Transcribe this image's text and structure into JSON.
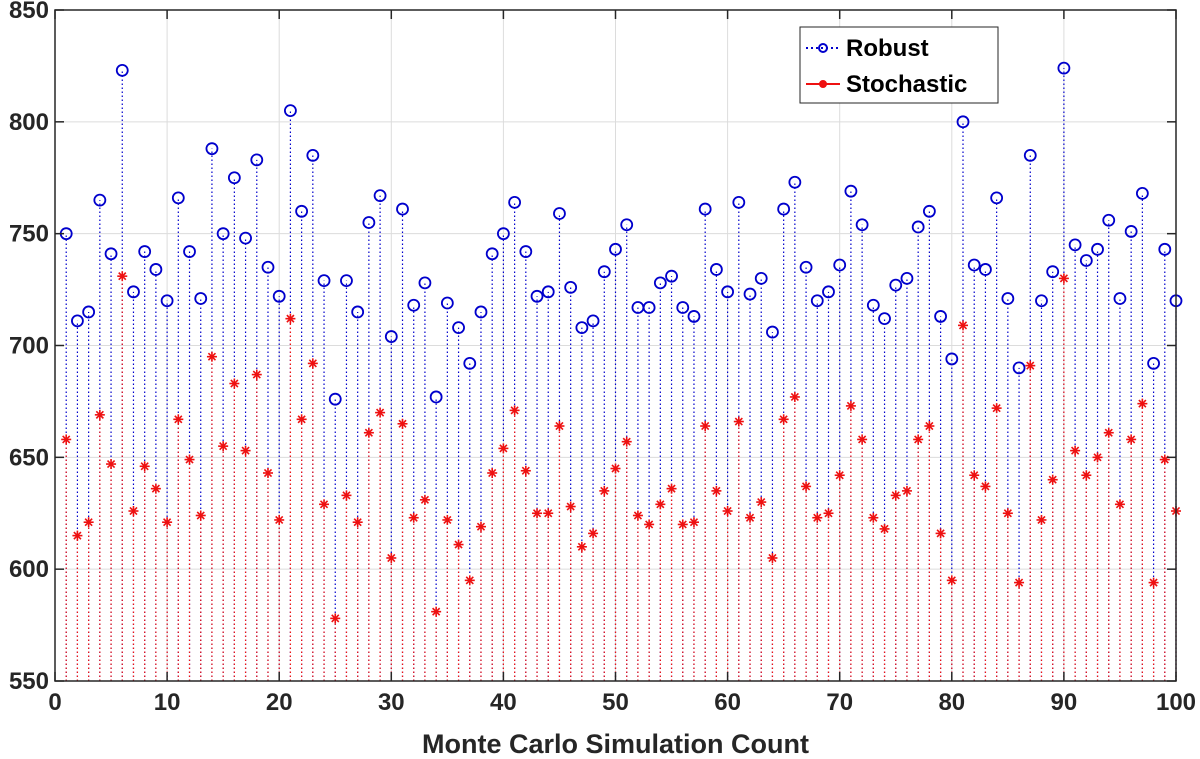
{
  "chart_data": {
    "type": "stem",
    "title": "",
    "xlabel": "Monte Carlo Simulation Count",
    "ylabel": "",
    "xlim": [
      0,
      100
    ],
    "ylim": [
      550,
      850
    ],
    "baseline": 550,
    "xticks": [
      0,
      10,
      20,
      30,
      40,
      50,
      60,
      70,
      80,
      90,
      100
    ],
    "yticks": [
      550,
      600,
      650,
      700,
      750,
      800,
      850
    ],
    "grid": true,
    "legend_position": "top-right",
    "x": [
      1,
      2,
      3,
      4,
      5,
      6,
      7,
      8,
      9,
      10,
      11,
      12,
      13,
      14,
      15,
      16,
      17,
      18,
      19,
      20,
      21,
      22,
      23,
      24,
      25,
      26,
      27,
      28,
      29,
      30,
      31,
      32,
      33,
      34,
      35,
      36,
      37,
      38,
      39,
      40,
      41,
      42,
      43,
      44,
      45,
      46,
      47,
      48,
      49,
      50,
      51,
      52,
      53,
      54,
      55,
      56,
      57,
      58,
      59,
      60,
      61,
      62,
      63,
      64,
      65,
      66,
      67,
      68,
      69,
      70,
      71,
      72,
      73,
      74,
      75,
      76,
      77,
      78,
      79,
      80,
      81,
      82,
      83,
      84,
      85,
      86,
      87,
      88,
      89,
      90,
      91,
      92,
      93,
      94,
      95,
      96,
      97,
      98,
      99,
      100
    ],
    "series": [
      {
        "name": "Robust",
        "color": "#0000cc",
        "marker": "circle",
        "values": [
          750,
          711,
          715,
          765,
          741,
          823,
          724,
          742,
          734,
          720,
          766,
          742,
          721,
          788,
          750,
          775,
          748,
          783,
          735,
          722,
          805,
          760,
          785,
          729,
          676,
          729,
          715,
          755,
          767,
          704,
          761,
          718,
          728,
          677,
          719,
          708,
          692,
          715,
          741,
          750,
          764,
          742,
          722,
          724,
          759,
          726,
          708,
          711,
          733,
          743,
          754,
          717,
          717,
          728,
          731,
          717,
          713,
          761,
          734,
          724,
          764,
          723,
          730,
          706,
          761,
          773,
          735,
          720,
          724,
          736,
          769,
          754,
          718,
          712,
          727,
          730,
          753,
          760,
          713,
          694,
          800,
          736,
          734,
          766,
          721,
          690,
          785,
          720,
          733,
          824,
          745,
          738,
          743,
          756,
          721,
          751,
          768,
          692,
          743,
          720
        ]
      },
      {
        "name": "Stochastic",
        "color": "#ee1111",
        "marker": "asterisk",
        "values": [
          658,
          615,
          621,
          669,
          647,
          731,
          626,
          646,
          636,
          621,
          667,
          649,
          624,
          695,
          655,
          683,
          653,
          687,
          643,
          622,
          712,
          667,
          692,
          629,
          578,
          633,
          621,
          661,
          670,
          605,
          665,
          623,
          631,
          581,
          622,
          611,
          595,
          619,
          643,
          654,
          671,
          644,
          625,
          625,
          664,
          628,
          610,
          616,
          635,
          645,
          657,
          624,
          620,
          629,
          636,
          620,
          621,
          664,
          635,
          626,
          666,
          623,
          630,
          605,
          667,
          677,
          637,
          623,
          625,
          642,
          673,
          658,
          623,
          618,
          633,
          635,
          658,
          664,
          616,
          595,
          709,
          642,
          637,
          672,
          625,
          594,
          691,
          622,
          640,
          730,
          653,
          642,
          650,
          661,
          629,
          658,
          674,
          594,
          649,
          626
        ]
      }
    ]
  }
}
